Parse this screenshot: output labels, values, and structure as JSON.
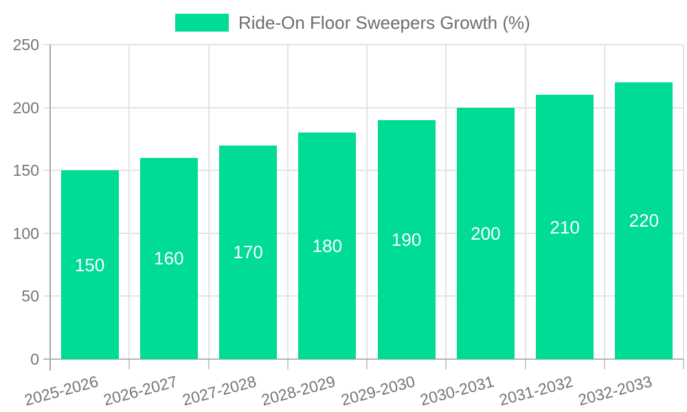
{
  "chart_data": {
    "type": "bar",
    "title": "",
    "xlabel": "",
    "ylabel": "",
    "legend": {
      "label": "Ride-On Floor Sweepers Growth (%)",
      "position": "top"
    },
    "categories": [
      "2025-2026",
      "2026-2027",
      "2027-2028",
      "2028-2029",
      "2029-2030",
      "2030-2031",
      "2031-2032",
      "2032-2033"
    ],
    "series": [
      {
        "name": "Ride-On Floor Sweepers Growth (%)",
        "values": [
          150,
          160,
          170,
          180,
          190,
          200,
          210,
          220
        ]
      }
    ],
    "value_labels": [
      "150",
      "160",
      "170",
      "180",
      "190",
      "200",
      "210",
      "220"
    ],
    "ylim": [
      0,
      250
    ],
    "yticks": [
      0,
      50,
      100,
      150,
      200,
      250
    ],
    "grid": true,
    "legend_position": "top-center",
    "colors": {
      "bar": "#00db95",
      "legend_text": "#6d6d6d",
      "axis_text": "#757575",
      "gridline": "#e4e4e4",
      "axis_line": "#a8a8a8",
      "baseline": "#b5b5b5",
      "x_tick": "#cccccc",
      "value_text": "#ffffff",
      "background": "#ffffff"
    }
  }
}
